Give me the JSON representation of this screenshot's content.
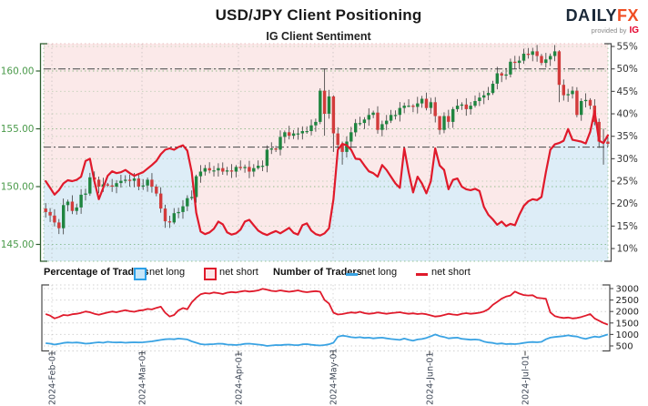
{
  "header": {
    "title": "USD/JPY Client Positioning",
    "logo": {
      "part1": "DA",
      "part2": "LY",
      "part3": "FX",
      "provided_by": "provided by",
      "ig": "IG"
    }
  },
  "legend": {
    "percentage_group": "Percentage of Traders",
    "number_group": "Number of Traders",
    "net_long": "net long",
    "net_short": "net short"
  },
  "colors": {
    "accent_red": "#e01a2b",
    "accent_blue": "#3aa3e3",
    "candle_up": "#1f8540",
    "candle_down": "#d23b3b",
    "bg_net_short_area": "#fbe9e9",
    "bg_net_long_area": "#ddedf7",
    "axis_green": "#4a9a4a",
    "axis_dark_green": "#2e5d2e",
    "axis_dark": "#333333",
    "xlabel_slate": "#3e4756"
  },
  "chart_data": [
    {
      "type": "candlestick",
      "title": "IG Client Sentiment",
      "left_axis": {
        "tick_labels": [
          "160.00",
          "155.00",
          "150.00",
          "145.00"
        ],
        "tick_values": [
          160,
          155,
          150,
          145
        ]
      },
      "right_axis": {
        "tick_labels": [
          "55%",
          "50%",
          "45%",
          "40%",
          "35%",
          "30%",
          "25%",
          "20%",
          "15%",
          "10%"
        ],
        "tick_values": [
          55,
          50,
          45,
          40,
          35,
          30,
          25,
          20,
          15,
          10
        ]
      },
      "reference_levels_pct": [
        50,
        32.6
      ],
      "price_first_open": 148.1,
      "price_closes": [
        147.8,
        147.5,
        146.9,
        146.4,
        148.4,
        148.7,
        147.9,
        148.2,
        149.3,
        149.4,
        150.8,
        150.6,
        150.0,
        150.2,
        150.1,
        150.0,
        150.3,
        150.5,
        150.6,
        150.5,
        150.7,
        150.0,
        150.1,
        150.6,
        150.0,
        149.4,
        148.1,
        147.0,
        146.9,
        147.7,
        147.8,
        148.3,
        149.0,
        149.1,
        150.9,
        151.3,
        151.6,
        151.4,
        151.4,
        151.6,
        151.3,
        151.4,
        151.3,
        151.7,
        151.6,
        151.7,
        151.3,
        151.6,
        151.8,
        151.8,
        153.2,
        153.3,
        153.2,
        154.3,
        154.7,
        154.4,
        154.6,
        154.6,
        154.8,
        154.8,
        155.3,
        155.6,
        158.3,
        156.3,
        157.8,
        154.6,
        153.6,
        153.0,
        153.9,
        154.7,
        155.5,
        155.5,
        155.8,
        156.2,
        156.4,
        154.9,
        155.4,
        155.7,
        156.2,
        156.2,
        156.8,
        157.0,
        157.0,
        156.9,
        157.2,
        157.6,
        156.8,
        157.3,
        156.1,
        154.9,
        156.1,
        155.6,
        156.7,
        157.0,
        157.1,
        156.7,
        157.0,
        157.4,
        157.7,
        157.9,
        158.1,
        158.9,
        159.8,
        159.6,
        159.7,
        160.8,
        160.7,
        160.9,
        161.5,
        161.4,
        161.7,
        161.3,
        160.7,
        161.0,
        161.3,
        161.7,
        158.8,
        157.9,
        158.0,
        158.3,
        156.2,
        157.4,
        157.5,
        157.0,
        155.6,
        153.9,
        153.9,
        153.7
      ],
      "wick_overrides": {
        "3": [
          147.2,
          145.9
        ],
        "62": [
          158.5,
          155.4
        ],
        "63": [
          160.2,
          154.4
        ],
        "65": [
          157.9,
          153.0
        ],
        "67": [
          153.9,
          151.9
        ],
        "89": [
          155.9,
          154.5
        ],
        "116": [
          161.8,
          157.3
        ],
        "120": [
          158.6,
          156.0
        ],
        "126": [
          155.0,
          151.9
        ]
      },
      "net_long_pct": [
        25.0,
        23.5,
        22.0,
        23.0,
        24.5,
        25.2,
        25.0,
        25.3,
        26.0,
        29.5,
        30.0,
        25.0,
        21.0,
        23.5,
        26.2,
        27.2,
        26.8,
        27.0,
        27.5,
        26.8,
        26.2,
        26.6,
        27.0,
        27.8,
        28.6,
        29.5,
        31.0,
        32.0,
        32.3,
        32.0,
        32.6,
        33.0,
        31.8,
        27.0,
        18.0,
        13.8,
        13.2,
        13.6,
        14.4,
        16.0,
        15.4,
        13.6,
        13.1,
        13.4,
        14.2,
        16.0,
        16.4,
        15.2,
        14.0,
        13.4,
        13.0,
        13.5,
        13.9,
        13.4,
        14.0,
        14.6,
        13.5,
        13.1,
        15.2,
        15.6,
        14.0,
        13.2,
        12.9,
        13.4,
        14.5,
        21.0,
        32.0,
        33.3,
        33.0,
        32.0,
        30.0,
        29.9,
        28.5,
        27.2,
        26.8,
        26.0,
        28.6,
        27.5,
        26.0,
        24.5,
        23.5,
        32.3,
        27.0,
        22.5,
        26.0,
        24.5,
        22.3,
        25.0,
        32.3,
        28.5,
        27.5,
        23.2,
        25.3,
        25.6,
        23.8,
        23.2,
        23.0,
        23.3,
        22.8,
        19.3,
        17.5,
        16.5,
        15.3,
        16.0,
        15.0,
        15.5,
        15.2,
        17.5,
        19.5,
        20.5,
        21.0,
        20.8,
        21.5,
        27.0,
        32.0,
        33.2,
        33.5,
        34.0,
        36.6,
        34.2,
        34.0,
        33.8,
        33.4,
        36.0,
        40.6,
        34.0,
        33.5,
        35.2
      ]
    },
    {
      "type": "line",
      "right_axis": {
        "tick_labels": [
          "3000",
          "2500",
          "2000",
          "1500",
          "1000",
          "500"
        ],
        "tick_values": [
          3000,
          2500,
          2000,
          1500,
          1000,
          500
        ]
      },
      "x_tick_labels": [
        "2024-Feb-01",
        "2024-Mar-01",
        "2024-Apr-01",
        "2024-May-01",
        "2024-Jun-01",
        "2024-Jul-01"
      ],
      "series": [
        {
          "name": "net long",
          "values": [
            620,
            600,
            560,
            590,
            630,
            650,
            640,
            650,
            630,
            600,
            610,
            640,
            660,
            640,
            680,
            660,
            650,
            660,
            640,
            650,
            660,
            650,
            660,
            680,
            700,
            730,
            760,
            790,
            800,
            790,
            820,
            800,
            780,
            700,
            640,
            580,
            560,
            570,
            580,
            600,
            590,
            560,
            550,
            540,
            560,
            590,
            600,
            580,
            560,
            540,
            500,
            520,
            540,
            530,
            550,
            560,
            540,
            530,
            570,
            580,
            550,
            530,
            520,
            540,
            570,
            640,
            900,
            950,
            920,
            880,
            860,
            880,
            850,
            860,
            830,
            850,
            860,
            830,
            800,
            780,
            760,
            820,
            770,
            730,
            780,
            800,
            850,
            920,
            1000,
            930,
            890,
            830,
            850,
            860,
            810,
            790,
            770,
            780,
            760,
            690,
            650,
            630,
            590,
            610,
            580,
            590,
            580,
            600,
            630,
            660,
            670,
            660,
            680,
            790,
            860,
            890,
            910,
            930,
            960,
            930,
            910,
            850,
            810,
            860,
            910,
            880,
            940,
            1000
          ]
        },
        {
          "name": "net short",
          "values": [
            1890,
            1820,
            1700,
            1760,
            1850,
            1830,
            1880,
            1900,
            1940,
            2000,
            1970,
            1900,
            1860,
            1910,
            1960,
            2000,
            1970,
            2020,
            2060,
            2010,
            1990,
            2040,
            2060,
            2110,
            2090,
            2160,
            2210,
            1950,
            1780,
            1850,
            2050,
            2150,
            2100,
            2400,
            2600,
            2750,
            2800,
            2780,
            2830,
            2800,
            2760,
            2820,
            2850,
            2830,
            2870,
            2900,
            2870,
            2890,
            2920,
            2990,
            2950,
            2900,
            2880,
            2920,
            2890,
            2860,
            2890,
            2920,
            2870,
            2840,
            2870,
            2890,
            2860,
            2500,
            2350,
            1950,
            1870,
            1890,
            1930,
            1960,
            1940,
            1990,
            1930,
            1900,
            1920,
            1960,
            1930,
            1900,
            1930,
            1950,
            1970,
            1930,
            1900,
            1920,
            1890,
            1910,
            1880,
            1830,
            1780,
            1800,
            1850,
            1900,
            1870,
            1850,
            1900,
            1930,
            1900,
            1920,
            1950,
            2000,
            2100,
            2290,
            2420,
            2560,
            2650,
            2700,
            2870,
            2780,
            2720,
            2700,
            2710,
            2600,
            2580,
            2560,
            1960,
            1800,
            1750,
            1720,
            1740,
            1700,
            1720,
            1760,
            1820,
            1890,
            1700,
            1600,
            1500,
            1430
          ]
        }
      ]
    }
  ]
}
